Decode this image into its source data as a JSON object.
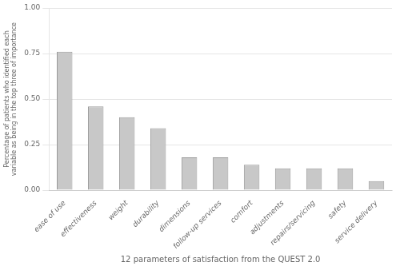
{
  "chart_data": {
    "type": "bar",
    "categories": [
      "ease of use",
      "effectiveness",
      "weight",
      "durability",
      "dimensions",
      "follow-up services",
      "comfort",
      "adjustments",
      "repairs/servicing",
      "safety",
      "service delivery"
    ],
    "values": [
      0.76,
      0.46,
      0.4,
      0.34,
      0.18,
      0.18,
      0.14,
      0.12,
      0.12,
      0.12,
      0.05
    ],
    "color": "#c8c8c8",
    "ylabel": "Percentage of patients who identified each\nvariable as being in the top three of importance",
    "xlabel": "12 parameters of satisfaction from the QUEST 2.0",
    "ylim": [
      0.0,
      1.0
    ],
    "yticks": [
      {
        "value": 0.0,
        "label": "0.00"
      },
      0.25,
      {
        "value": 0.5,
        "label": "0.50"
      },
      0.75,
      {
        "value": 1.0,
        "label": "1.00"
      }
    ],
    "grid": true
  }
}
